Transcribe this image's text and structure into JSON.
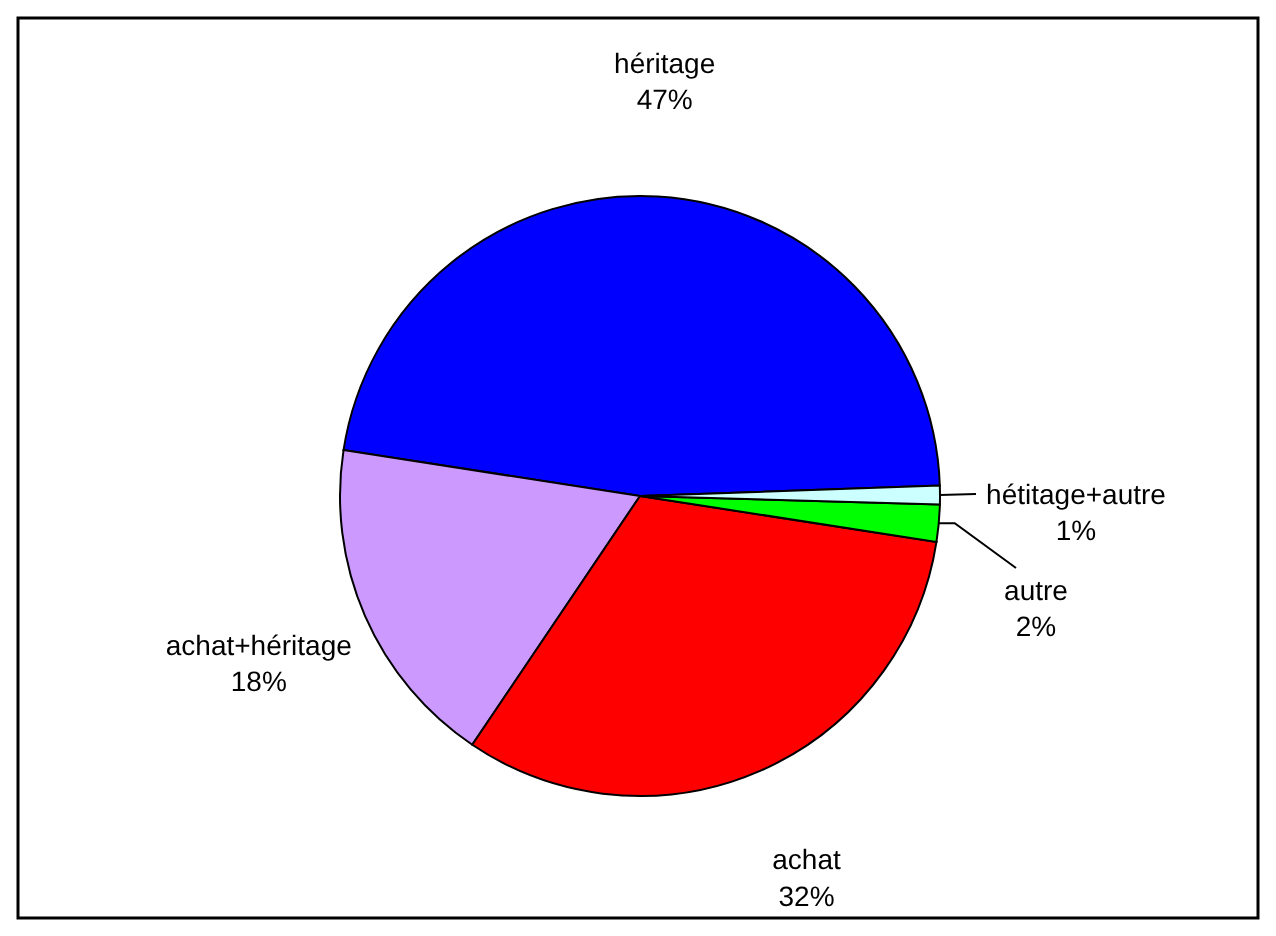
{
  "chart_data": {
    "type": "pie",
    "categories": [
      "héritage",
      "achat+héritage",
      "achat",
      "autre",
      "hétitage+autre"
    ],
    "values": [
      47,
      18,
      32,
      2,
      1
    ],
    "value_labels": [
      "47%",
      "18%",
      "32%",
      "2%",
      "1%"
    ],
    "colors": [
      "#0000ff",
      "#cc99ff",
      "#ff0000",
      "#00ff00",
      "#ccffff"
    ]
  }
}
